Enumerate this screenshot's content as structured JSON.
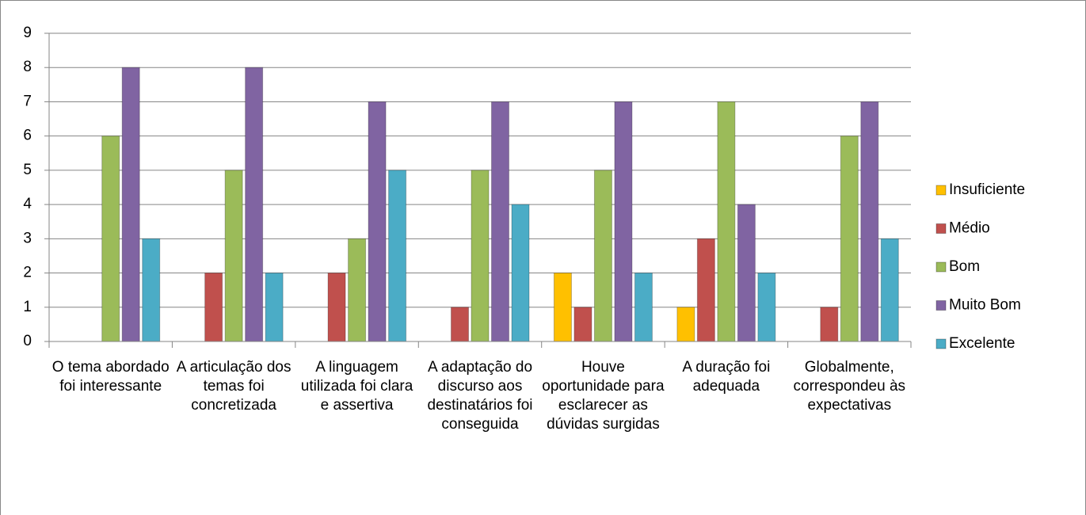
{
  "chart_data": {
    "type": "bar",
    "categories": [
      "O tema abordado foi interessante",
      "A articulação dos temas foi concretizada",
      "A linguagem utilizada foi clara e assertiva",
      "A adaptação do discurso aos destinatários foi conseguida",
      "Houve oportunidade para esclarecer as dúvidas surgidas",
      "A duração foi adequada",
      "Globalmente, correspondeu às expectativas"
    ],
    "series": [
      {
        "name": "Insuficiente",
        "color": "#ffc000",
        "values": [
          0,
          0,
          0,
          0,
          2,
          1,
          0
        ]
      },
      {
        "name": "Médio",
        "color": "#c0504d",
        "values": [
          0,
          2,
          2,
          1,
          1,
          3,
          1
        ]
      },
      {
        "name": "Bom",
        "color": "#9bbb59",
        "values": [
          6,
          5,
          3,
          5,
          5,
          7,
          6
        ]
      },
      {
        "name": "Muito Bom",
        "color": "#8064a2",
        "values": [
          8,
          8,
          7,
          7,
          7,
          4,
          7
        ]
      },
      {
        "name": "Excelente",
        "color": "#4bacc6",
        "values": [
          3,
          2,
          5,
          4,
          2,
          2,
          3
        ]
      }
    ],
    "ylim": [
      0,
      9
    ],
    "yticks": [
      0,
      1,
      2,
      3,
      4,
      5,
      6,
      7,
      8,
      9
    ],
    "grid": true,
    "legend": "right"
  }
}
